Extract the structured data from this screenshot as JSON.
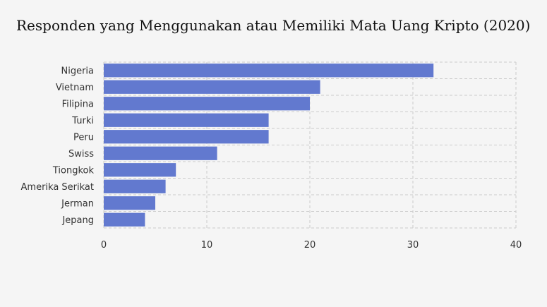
{
  "chart_data": {
    "type": "bar",
    "orientation": "horizontal",
    "title": "Responden yang Menggunakan atau Memiliki Mata Uang Kripto (2020)",
    "xlabel": "",
    "ylabel": "",
    "xlim": [
      0,
      40
    ],
    "xticks": [
      0,
      10,
      20,
      30,
      40
    ],
    "grid": true,
    "categories": [
      "Nigeria",
      "Vietnam",
      "Filipina",
      "Turki",
      "Peru",
      "Swiss",
      "Tiongkok",
      "Amerika Serikat",
      "Jerman",
      "Jepang"
    ],
    "values": [
      32,
      21,
      20,
      16,
      16,
      11,
      7,
      6,
      5,
      4
    ],
    "colors": {
      "bar": "#6279cf",
      "grid": "#cccccc"
    }
  }
}
